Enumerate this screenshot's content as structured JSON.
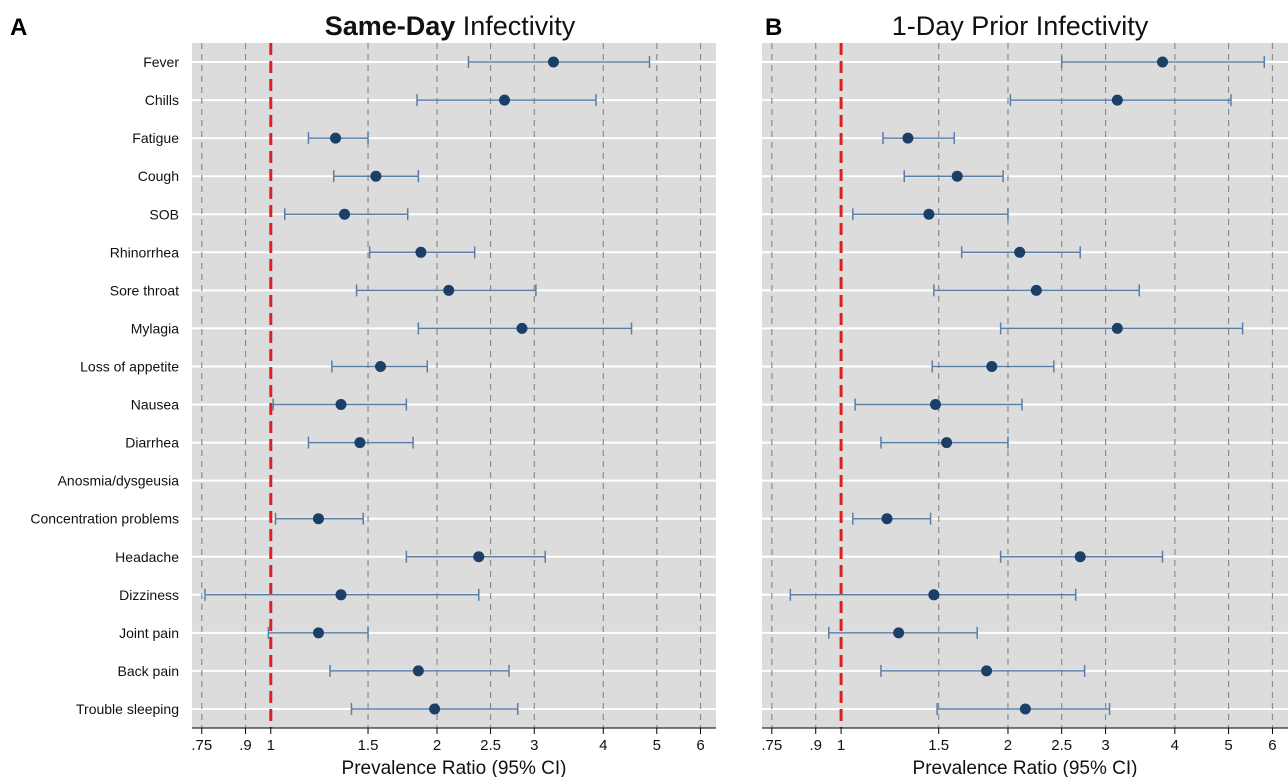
{
  "chart_data": [
    {
      "type": "scatter",
      "panel_label": "A",
      "title_bold": "Same-Day",
      "title_rest": " Infectivity",
      "xlabel": "Prevalence Ratio (95% CI)",
      "x_scale": "log",
      "xlim": [
        0.72,
        6.4
      ],
      "xticks": [
        0.75,
        0.9,
        1,
        1.5,
        2,
        2.5,
        3,
        4,
        5,
        6
      ],
      "xtick_labels": [
        ".75",
        ".9",
        "1",
        "1.5",
        "2",
        "2.5",
        "3",
        "4",
        "5",
        "6"
      ],
      "reference_line": 1,
      "grid": true,
      "categories": [
        "Fever",
        "Chills",
        "Fatigue",
        "Cough",
        "SOB",
        "Rhinorrhea",
        "Sore throat",
        "Mylagia",
        "Loss of appetite",
        "Nausea",
        "Diarrhea",
        "Anosmia/dysgeusia",
        "Concentration problems",
        "Headache",
        "Dizziness",
        "Joint pain",
        "Back pain",
        "Trouble sleeping"
      ],
      "points": [
        {
          "est": 3.25,
          "lo": 2.28,
          "hi": 4.85
        },
        {
          "est": 2.65,
          "lo": 1.84,
          "hi": 3.88
        },
        {
          "est": 1.31,
          "lo": 1.17,
          "hi": 1.5
        },
        {
          "est": 1.55,
          "lo": 1.3,
          "hi": 1.85
        },
        {
          "est": 1.36,
          "lo": 1.06,
          "hi": 1.77
        },
        {
          "est": 1.87,
          "lo": 1.51,
          "hi": 2.34
        },
        {
          "est": 2.1,
          "lo": 1.43,
          "hi": 3.02
        },
        {
          "est": 2.85,
          "lo": 1.85,
          "hi": 4.5
        },
        {
          "est": 1.58,
          "lo": 1.29,
          "hi": 1.92
        },
        {
          "est": 1.34,
          "lo": 1.01,
          "hi": 1.76
        },
        {
          "est": 1.45,
          "lo": 1.17,
          "hi": 1.81
        },
        null,
        {
          "est": 1.22,
          "lo": 1.02,
          "hi": 1.47
        },
        {
          "est": 2.38,
          "lo": 1.76,
          "hi": 3.14
        },
        {
          "est": 1.34,
          "lo": 0.76,
          "hi": 2.38
        },
        {
          "est": 1.22,
          "lo": 0.99,
          "hi": 1.5
        },
        {
          "est": 1.85,
          "lo": 1.28,
          "hi": 2.7
        },
        {
          "est": 1.98,
          "lo": 1.4,
          "hi": 2.8
        }
      ]
    },
    {
      "type": "scatter",
      "panel_label": "B",
      "title_bold": "",
      "title_rest": "1-Day Prior Infectivity",
      "xlabel": "Prevalence Ratio (95% CI)",
      "x_scale": "log",
      "xlim": [
        0.72,
        6.4
      ],
      "xticks": [
        0.75,
        0.9,
        1,
        1.5,
        2,
        2.5,
        3,
        4,
        5,
        6
      ],
      "xtick_labels": [
        ".75",
        ".9",
        "1",
        "1.5",
        "2",
        "2.5",
        "3",
        "4",
        "5",
        "6"
      ],
      "reference_line": 1,
      "grid": true,
      "categories": [
        "Fever",
        "Chills",
        "Fatigue",
        "Cough",
        "SOB",
        "Rhinorrhea",
        "Sore throat",
        "Mylagia",
        "Loss of appetite",
        "Nausea",
        "Diarrhea",
        "Anosmia/dysgeusia",
        "Concentration problems",
        "Headache",
        "Dizziness",
        "Joint pain",
        "Back pain",
        "Trouble sleeping"
      ],
      "points": [
        {
          "est": 3.8,
          "lo": 2.5,
          "hi": 5.8
        },
        {
          "est": 3.15,
          "lo": 2.02,
          "hi": 5.05
        },
        {
          "est": 1.32,
          "lo": 1.19,
          "hi": 1.6
        },
        {
          "est": 1.62,
          "lo": 1.3,
          "hi": 1.96
        },
        {
          "est": 1.44,
          "lo": 1.05,
          "hi": 2.0
        },
        {
          "est": 2.1,
          "lo": 1.65,
          "hi": 2.7
        },
        {
          "est": 2.25,
          "lo": 1.47,
          "hi": 3.45
        },
        {
          "est": 3.15,
          "lo": 1.94,
          "hi": 5.3
        },
        {
          "est": 1.87,
          "lo": 1.46,
          "hi": 2.42
        },
        {
          "est": 1.48,
          "lo": 1.06,
          "hi": 2.12
        },
        {
          "est": 1.55,
          "lo": 1.18,
          "hi": 2.0
        },
        null,
        {
          "est": 1.21,
          "lo": 1.05,
          "hi": 1.45
        },
        {
          "est": 2.7,
          "lo": 1.94,
          "hi": 3.8
        },
        {
          "est": 1.47,
          "lo": 0.81,
          "hi": 2.65
        },
        {
          "est": 1.27,
          "lo": 0.95,
          "hi": 1.76
        },
        {
          "est": 1.83,
          "lo": 1.18,
          "hi": 2.75
        },
        {
          "est": 2.15,
          "lo": 1.49,
          "hi": 3.05
        }
      ]
    }
  ],
  "colors": {
    "panel_bg": "#dcdcdc",
    "gridline_h": "#ffffff",
    "gridline_v": "#8c8c8c",
    "reference_line": "#e02020",
    "marker": "#1b3f66",
    "ci_line": "#5a7fa6"
  }
}
